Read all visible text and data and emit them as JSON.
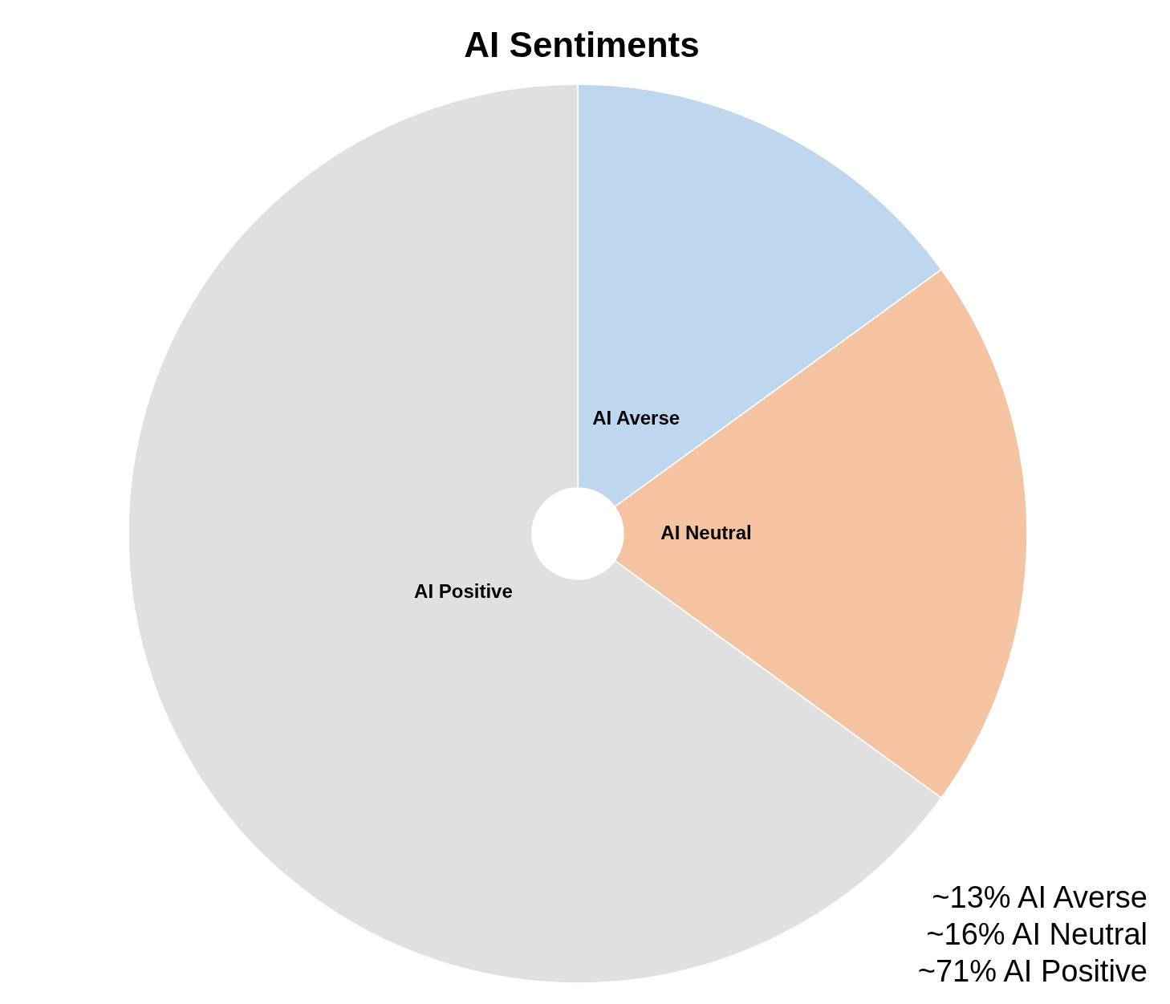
{
  "chart_data": {
    "type": "pie",
    "title": "AI Sentiments",
    "categories": [
      "AI Averse",
      "AI Neutral",
      "AI Positive"
    ],
    "values": [
      15,
      20,
      65
    ],
    "colors": [
      "#bed7ee",
      "#f4c4a2",
      "#e0e0e0"
    ],
    "annotations": [
      "~13% AI Averse",
      "~16% AI Neutral",
      "~71% AI Positive"
    ]
  }
}
